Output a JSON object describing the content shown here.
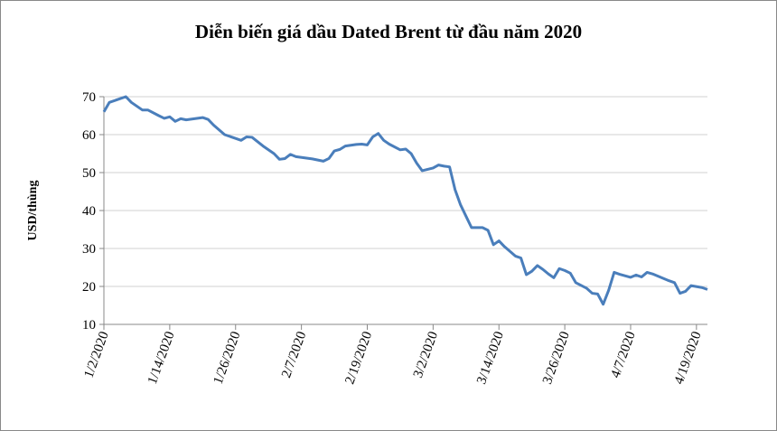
{
  "chart_data": {
    "type": "line",
    "title": "Diễn biến giá dầu Dated Brent từ đầu năm 2020",
    "y_label": "USD/thùng",
    "x": [
      "1/2/2020",
      "1/3/2020",
      "1/6/2020",
      "1/7/2020",
      "1/9/2020",
      "1/10/2020",
      "1/12/2020",
      "1/13/2020",
      "1/14/2020",
      "1/15/2020",
      "1/16/2020",
      "1/17/2020",
      "1/20/2020",
      "1/21/2020",
      "1/22/2020",
      "1/24/2020",
      "1/26/2020",
      "1/27/2020",
      "1/28/2020",
      "1/29/2020",
      "1/31/2020",
      "2/2/2020",
      "2/3/2020",
      "2/4/2020",
      "2/5/2020",
      "2/6/2020",
      "2/9/2020",
      "2/11/2020",
      "2/12/2020",
      "2/13/2020",
      "2/14/2020",
      "2/15/2020",
      "2/17/2020",
      "2/18/2020",
      "2/19/2020",
      "2/20/2020",
      "2/21/2020",
      "2/22/2020",
      "2/23/2020",
      "2/25/2020",
      "2/26/2020",
      "2/27/2020",
      "2/28/2020",
      "2/29/2020",
      "3/2/2020",
      "3/3/2020",
      "3/4/2020",
      "3/5/2020",
      "3/6/2020",
      "3/7/2020",
      "3/8/2020",
      "3/9/2020",
      "3/11/2020",
      "3/12/2020",
      "3/13/2020",
      "3/14/2020",
      "3/15/2020",
      "3/17/2020",
      "3/18/2020",
      "3/19/2020",
      "3/20/2020",
      "3/21/2020",
      "3/22/2020",
      "3/23/2020",
      "3/24/2020",
      "3/25/2020",
      "3/26/2020",
      "3/27/2020",
      "3/28/2020",
      "3/30/2020",
      "3/31/2020",
      "4/1/2020",
      "4/2/2020",
      "4/3/2020",
      "4/4/2020",
      "4/5/2020",
      "4/7/2020",
      "4/8/2020",
      "4/9/2020",
      "4/10/2020",
      "4/11/2020",
      "4/14/2020",
      "4/15/2020",
      "4/16/2020",
      "4/17/2020",
      "4/18/2020",
      "4/20/2020",
      "4/21/2020"
    ],
    "series": [
      {
        "name": "Dated Brent",
        "color": "#4a7ebb",
        "values": [
          66,
          68.5,
          70,
          68.5,
          66.5,
          66.5,
          65,
          64.3,
          64.7,
          63.5,
          64.2,
          63.9,
          64.5,
          64,
          62.5,
          60,
          59,
          58.5,
          59.4,
          59.3,
          57,
          55,
          53.5,
          53.7,
          54.8,
          54.2,
          53.6,
          53,
          53.7,
          55.7,
          56.1,
          57,
          57.4,
          57.5,
          57.3,
          59.4,
          60.3,
          58.5,
          57.5,
          56,
          56.2,
          55,
          52.5,
          50.5,
          51.2,
          52,
          51.7,
          51.5,
          45.5,
          41.5,
          38.5,
          35.5,
          35.5,
          34.8,
          31,
          32,
          30.5,
          28,
          27.5,
          23.1,
          24,
          25.5,
          24.5,
          23.3,
          22.3,
          24.7,
          24.2,
          23.5,
          21,
          19.5,
          18.2,
          18,
          15.3,
          19,
          23.7,
          23.2,
          22.4,
          23,
          22.5,
          23.7,
          23.3,
          21.5,
          21,
          18.2,
          18.7,
          20.2,
          19.7,
          19.2
        ]
      }
    ],
    "xlim": [
      "1/2/2020",
      "4/21/2020"
    ],
    "xticks": [
      "1/2/2020",
      "1/14/2020",
      "1/26/2020",
      "2/7/2020",
      "2/19/2020",
      "3/2/2020",
      "3/14/2020",
      "3/26/2020",
      "4/7/2020",
      "4/19/2020"
    ],
    "ylim": [
      10,
      70
    ],
    "yticks": [
      10,
      20,
      30,
      40,
      50,
      60,
      70
    ],
    "grid": true
  }
}
